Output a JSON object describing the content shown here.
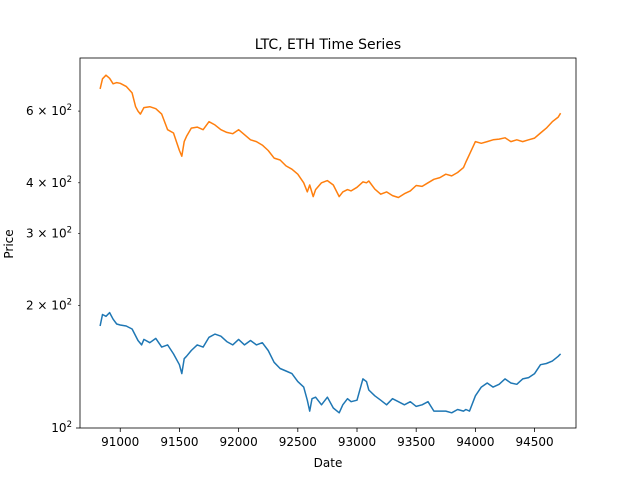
{
  "chart_data": {
    "type": "line",
    "title": "LTC, ETH Time Series",
    "xlabel": "Date",
    "ylabel": "Price",
    "xlim": [
      90660,
      94850
    ],
    "ylim": [
      100,
      810
    ],
    "yscale": "log",
    "grid": false,
    "x_ticks": [
      91000,
      91500,
      92000,
      92500,
      93000,
      93500,
      94000,
      94500
    ],
    "x_tick_labels": [
      "91000",
      "91500",
      "92000",
      "92500",
      "93000",
      "93500",
      "94000",
      "94500"
    ],
    "y_major_ticks": [
      100
    ],
    "y_major_tick_labels": [
      "10",
      "2"
    ],
    "y_minor_ticks": [
      200,
      300,
      400,
      600
    ],
    "y_minor_tick_labels": [
      {
        "base": "2 × 10",
        "exp": "2"
      },
      {
        "base": "3 × 10",
        "exp": "2"
      },
      {
        "base": "4 × 10",
        "exp": "2"
      },
      {
        "base": "6 × 10",
        "exp": "2"
      }
    ],
    "series": [
      {
        "color": "#1f77b4",
        "x": [
          90830,
          90850,
          90880,
          90910,
          90940,
          90970,
          91000,
          91050,
          91100,
          91150,
          91180,
          91200,
          91250,
          91300,
          91350,
          91400,
          91450,
          91500,
          91520,
          91540,
          91560,
          91600,
          91650,
          91700,
          91750,
          91800,
          91850,
          91900,
          91950,
          92000,
          92050,
          92100,
          92150,
          92200,
          92250,
          92300,
          92350,
          92400,
          92450,
          92500,
          92550,
          92580,
          92600,
          92620,
          92650,
          92700,
          92750,
          92800,
          92850,
          92880,
          92920,
          92950,
          93000,
          93050,
          93080,
          93100,
          93150,
          93200,
          93250,
          93300,
          93350,
          93400,
          93450,
          93500,
          93550,
          93600,
          93650,
          93700,
          93750,
          93800,
          93850,
          93900,
          93920,
          93950,
          94000,
          94050,
          94100,
          94150,
          94200,
          94250,
          94300,
          94350,
          94400,
          94450,
          94500,
          94550,
          94600,
          94650,
          94700,
          94720
        ],
        "y": [
          178,
          190,
          188,
          192,
          185,
          180,
          179,
          178,
          175,
          164,
          160,
          165,
          162,
          166,
          158,
          160,
          152,
          143,
          136,
          148,
          150,
          155,
          160,
          158,
          167,
          170,
          168,
          163,
          160,
          165,
          160,
          164,
          160,
          162,
          155,
          145,
          140,
          138,
          136,
          130,
          126,
          117,
          110,
          118,
          119,
          114,
          119,
          112,
          109,
          114,
          118,
          116,
          117,
          132,
          130,
          124,
          120,
          117,
          114,
          118,
          116,
          114,
          116,
          113,
          114,
          116,
          110,
          110,
          110,
          109,
          111,
          110,
          111,
          110,
          120,
          126,
          129,
          126,
          128,
          132,
          129,
          128,
          132,
          133,
          136,
          143,
          144,
          146,
          150,
          152
        ]
      },
      {
        "color": "#ff7f0e",
        "x": [
          90830,
          90850,
          90880,
          90910,
          90940,
          90970,
          91000,
          91050,
          91100,
          91130,
          91150,
          91170,
          91200,
          91250,
          91300,
          91350,
          91400,
          91450,
          91500,
          91520,
          91540,
          91560,
          91600,
          91650,
          91700,
          91750,
          91800,
          91850,
          91900,
          91950,
          92000,
          92050,
          92100,
          92150,
          92200,
          92250,
          92300,
          92350,
          92400,
          92450,
          92500,
          92550,
          92580,
          92600,
          92630,
          92650,
          92700,
          92750,
          92800,
          92850,
          92880,
          92920,
          92950,
          93000,
          93050,
          93080,
          93100,
          93150,
          93200,
          93250,
          93300,
          93350,
          93400,
          93450,
          93500,
          93550,
          93600,
          93650,
          93700,
          93750,
          93800,
          93850,
          93900,
          93920,
          93950,
          94000,
          94050,
          94100,
          94150,
          94200,
          94250,
          94300,
          94350,
          94400,
          94450,
          94500,
          94550,
          94600,
          94650,
          94700,
          94720
        ],
        "y": [
          680,
          720,
          735,
          722,
          700,
          705,
          702,
          690,
          665,
          615,
          600,
          590,
          612,
          615,
          608,
          590,
          540,
          530,
          480,
          465,
          505,
          520,
          545,
          548,
          540,
          565,
          555,
          540,
          532,
          528,
          540,
          525,
          510,
          505,
          495,
          480,
          460,
          455,
          440,
          432,
          420,
          400,
          380,
          395,
          370,
          385,
          400,
          405,
          395,
          370,
          380,
          385,
          382,
          390,
          402,
          400,
          404,
          386,
          375,
          380,
          372,
          368,
          376,
          382,
          394,
          392,
          400,
          408,
          412,
          420,
          416,
          424,
          436,
          450,
          470,
          505,
          500,
          505,
          510,
          512,
          516,
          505,
          510,
          505,
          510,
          515,
          530,
          545,
          565,
          580,
          593
        ]
      }
    ]
  }
}
